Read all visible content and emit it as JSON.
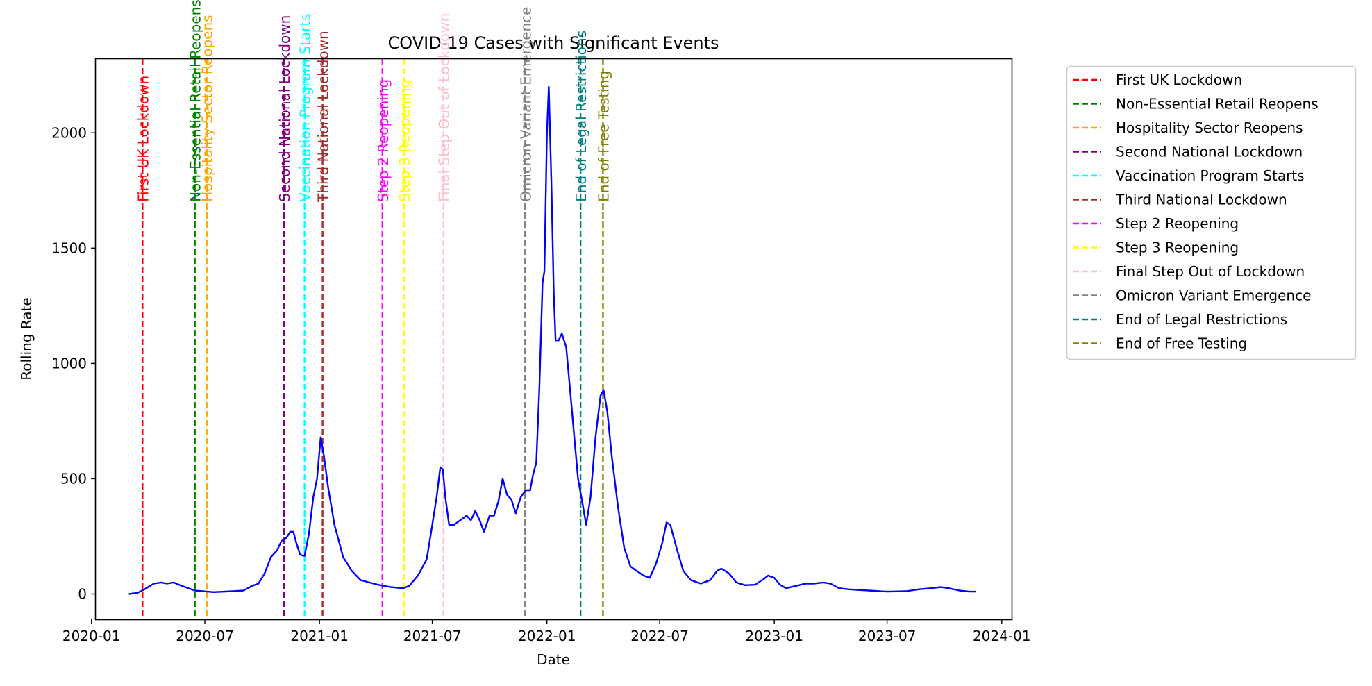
{
  "chart_data": {
    "type": "line",
    "title": "COVID-19 Cases with Significant Events",
    "xlabel": "Date",
    "ylabel": "Rolling Rate",
    "xlim": [
      "2020-01-08",
      "2024-01-18"
    ],
    "ylim": [
      -110,
      2320
    ],
    "x_ticks": [
      "2020-01-01",
      "2020-07-01",
      "2021-01-01",
      "2021-07-01",
      "2022-01-01",
      "2022-07-01",
      "2023-01-01",
      "2023-07-01",
      "2024-01-01"
    ],
    "x_tick_labels": [
      "2020-01",
      "2020-07",
      "2021-01",
      "2021-07",
      "2022-01",
      "2022-07",
      "2023-01",
      "2023-07",
      "2024-01"
    ],
    "y_ticks": [
      0,
      500,
      1000,
      1500,
      2000
    ],
    "y_tick_labels": [
      "0",
      "500",
      "1000",
      "1500",
      "2000"
    ],
    "grid": false,
    "legend_position": "outside-right",
    "series": [
      {
        "color": "#0000ff",
        "points": [
          [
            "2020-03-01",
            0
          ],
          [
            "2020-03-15",
            5
          ],
          [
            "2020-03-26",
            20
          ],
          [
            "2020-04-10",
            45
          ],
          [
            "2020-04-22",
            50
          ],
          [
            "2020-05-01",
            45
          ],
          [
            "2020-05-12",
            50
          ],
          [
            "2020-05-25",
            35
          ],
          [
            "2020-06-15",
            15
          ],
          [
            "2020-07-15",
            8
          ],
          [
            "2020-08-15",
            12
          ],
          [
            "2020-09-01",
            15
          ],
          [
            "2020-09-15",
            35
          ],
          [
            "2020-09-25",
            45
          ],
          [
            "2020-10-05",
            90
          ],
          [
            "2020-10-15",
            160
          ],
          [
            "2020-10-25",
            190
          ],
          [
            "2020-11-01",
            230
          ],
          [
            "2020-11-08",
            240
          ],
          [
            "2020-11-15",
            270
          ],
          [
            "2020-11-20",
            270
          ],
          [
            "2020-11-25",
            220
          ],
          [
            "2020-12-01",
            170
          ],
          [
            "2020-12-08",
            165
          ],
          [
            "2020-12-15",
            260
          ],
          [
            "2020-12-22",
            420
          ],
          [
            "2020-12-28",
            500
          ],
          [
            "2021-01-03",
            680
          ],
          [
            "2021-01-08",
            600
          ],
          [
            "2021-01-15",
            460
          ],
          [
            "2021-01-25",
            300
          ],
          [
            "2021-02-08",
            160
          ],
          [
            "2021-02-22",
            100
          ],
          [
            "2021-03-08",
            60
          ],
          [
            "2021-03-22",
            50
          ],
          [
            "2021-04-05",
            40
          ],
          [
            "2021-04-25",
            30
          ],
          [
            "2021-05-15",
            25
          ],
          [
            "2021-05-25",
            35
          ],
          [
            "2021-06-08",
            80
          ],
          [
            "2021-06-22",
            150
          ],
          [
            "2021-07-01",
            300
          ],
          [
            "2021-07-08",
            420
          ],
          [
            "2021-07-14",
            550
          ],
          [
            "2021-07-18",
            540
          ],
          [
            "2021-07-22",
            420
          ],
          [
            "2021-07-28",
            300
          ],
          [
            "2021-08-05",
            300
          ],
          [
            "2021-08-15",
            320
          ],
          [
            "2021-08-25",
            340
          ],
          [
            "2021-09-01",
            320
          ],
          [
            "2021-09-08",
            360
          ],
          [
            "2021-09-15",
            320
          ],
          [
            "2021-09-22",
            270
          ],
          [
            "2021-10-01",
            340
          ],
          [
            "2021-10-08",
            340
          ],
          [
            "2021-10-15",
            400
          ],
          [
            "2021-10-22",
            500
          ],
          [
            "2021-10-29",
            430
          ],
          [
            "2021-11-05",
            410
          ],
          [
            "2021-11-12",
            350
          ],
          [
            "2021-11-20",
            420
          ],
          [
            "2021-11-28",
            450
          ],
          [
            "2021-12-05",
            450
          ],
          [
            "2021-12-10",
            520
          ],
          [
            "2021-12-15",
            570
          ],
          [
            "2021-12-20",
            900
          ],
          [
            "2021-12-25",
            1350
          ],
          [
            "2021-12-28",
            1400
          ],
          [
            "2022-01-01",
            2000
          ],
          [
            "2022-01-04",
            2200
          ],
          [
            "2022-01-08",
            1800
          ],
          [
            "2022-01-12",
            1300
          ],
          [
            "2022-01-15",
            1100
          ],
          [
            "2022-01-20",
            1100
          ],
          [
            "2022-01-25",
            1130
          ],
          [
            "2022-02-01",
            1070
          ],
          [
            "2022-02-10",
            800
          ],
          [
            "2022-02-20",
            500
          ],
          [
            "2022-02-28",
            380
          ],
          [
            "2022-03-05",
            300
          ],
          [
            "2022-03-12",
            420
          ],
          [
            "2022-03-20",
            680
          ],
          [
            "2022-03-28",
            860
          ],
          [
            "2022-04-02",
            885
          ],
          [
            "2022-04-08",
            790
          ],
          [
            "2022-04-15",
            600
          ],
          [
            "2022-04-25",
            380
          ],
          [
            "2022-05-05",
            200
          ],
          [
            "2022-05-15",
            120
          ],
          [
            "2022-05-25",
            100
          ],
          [
            "2022-06-05",
            80
          ],
          [
            "2022-06-15",
            70
          ],
          [
            "2022-06-25",
            130
          ],
          [
            "2022-07-05",
            220
          ],
          [
            "2022-07-12",
            310
          ],
          [
            "2022-07-18",
            300
          ],
          [
            "2022-07-28",
            200
          ],
          [
            "2022-08-08",
            100
          ],
          [
            "2022-08-20",
            60
          ],
          [
            "2022-09-05",
            45
          ],
          [
            "2022-09-20",
            60
          ],
          [
            "2022-10-01",
            100
          ],
          [
            "2022-10-08",
            110
          ],
          [
            "2022-10-20",
            90
          ],
          [
            "2022-11-01",
            50
          ],
          [
            "2022-11-15",
            38
          ],
          [
            "2022-12-01",
            40
          ],
          [
            "2022-12-15",
            65
          ],
          [
            "2022-12-22",
            80
          ],
          [
            "2023-01-01",
            70
          ],
          [
            "2023-01-10",
            40
          ],
          [
            "2023-01-20",
            25
          ],
          [
            "2023-02-05",
            35
          ],
          [
            "2023-02-20",
            45
          ],
          [
            "2023-03-05",
            45
          ],
          [
            "2023-03-20",
            50
          ],
          [
            "2023-04-01",
            45
          ],
          [
            "2023-04-15",
            25
          ],
          [
            "2023-05-01",
            20
          ],
          [
            "2023-06-01",
            15
          ],
          [
            "2023-07-01",
            10
          ],
          [
            "2023-08-01",
            12
          ],
          [
            "2023-08-20",
            20
          ],
          [
            "2023-09-10",
            25
          ],
          [
            "2023-09-25",
            30
          ],
          [
            "2023-10-08",
            25
          ],
          [
            "2023-10-25",
            15
          ],
          [
            "2023-11-10",
            10
          ],
          [
            "2023-11-20",
            10
          ]
        ]
      }
    ],
    "events": [
      {
        "date": "2020-03-23",
        "label": "First UK Lockdown",
        "color": "#ff0000"
      },
      {
        "date": "2020-06-15",
        "label": "Non-Essential Retail Reopens",
        "color": "#008000"
      },
      {
        "date": "2020-07-04",
        "label": "Hospitality Sector Reopens",
        "color": "#ffa500"
      },
      {
        "date": "2020-11-05",
        "label": "Second National Lockdown",
        "color": "#800080"
      },
      {
        "date": "2020-12-08",
        "label": "Vaccination Program Starts",
        "color": "#00ffff"
      },
      {
        "date": "2021-01-06",
        "label": "Third National Lockdown",
        "color": "#a52a2a"
      },
      {
        "date": "2021-04-12",
        "label": "Step 2 Reopening",
        "color": "#ff00ff"
      },
      {
        "date": "2021-05-17",
        "label": "Step 3 Reopening",
        "color": "#ffff00"
      },
      {
        "date": "2021-07-19",
        "label": "Final Step Out of Lockdown",
        "color": "#ffc0cb"
      },
      {
        "date": "2021-11-27",
        "label": "Omicron Variant Emergence",
        "color": "#808080"
      },
      {
        "date": "2022-02-24",
        "label": "End of Legal Restrictions",
        "color": "#008080"
      },
      {
        "date": "2022-04-01",
        "label": "End of Free Testing",
        "color": "#808000"
      }
    ]
  }
}
